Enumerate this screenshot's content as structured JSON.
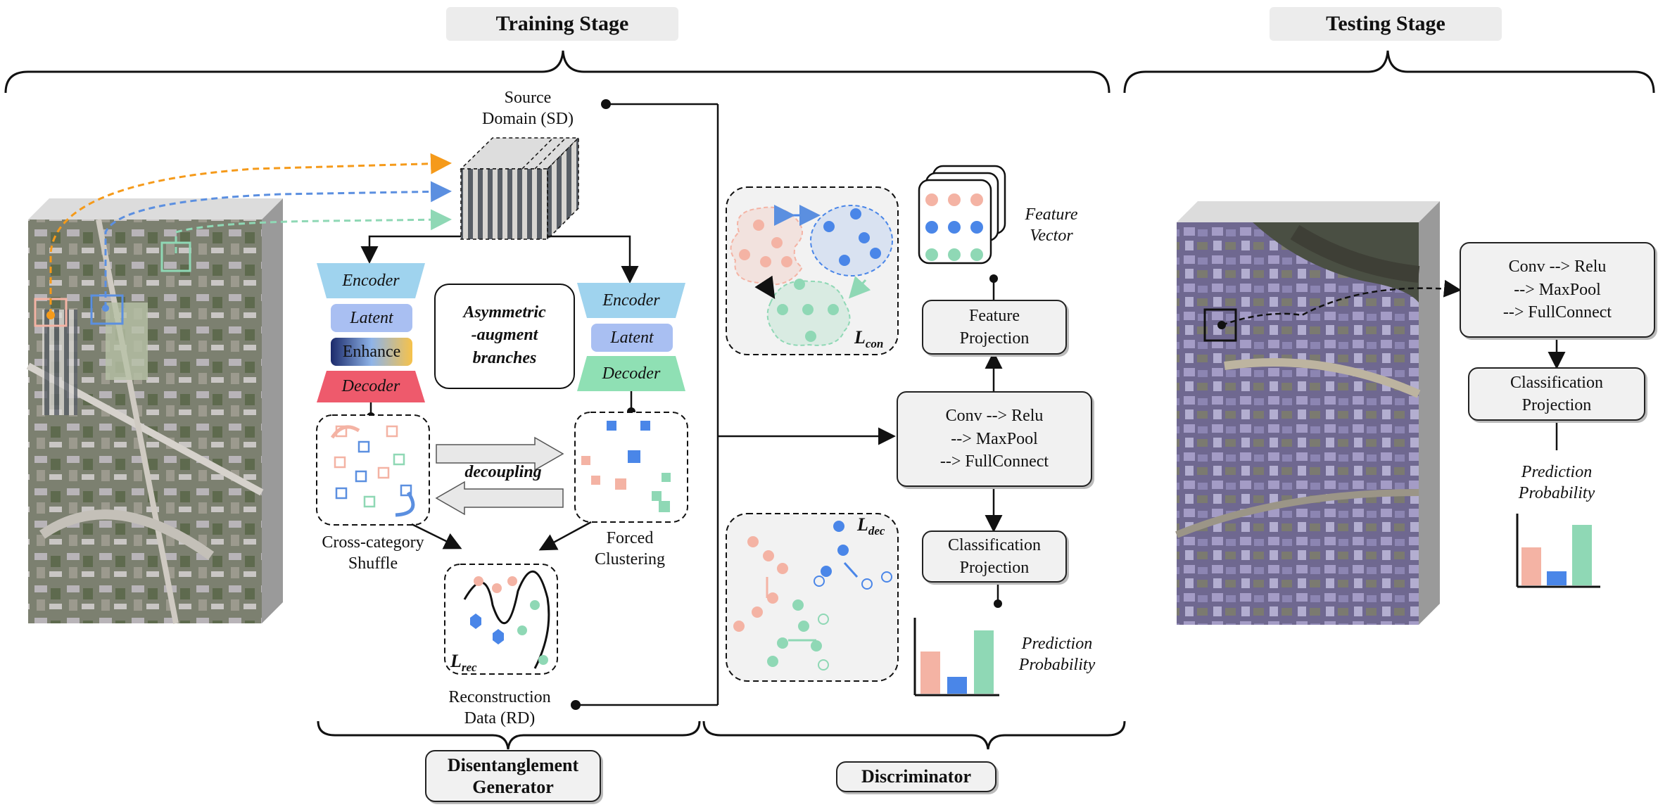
{
  "stages": {
    "training": "Training Stage",
    "testing": "Testing Stage"
  },
  "generator": {
    "source_domain": [
      "Source",
      "Domain (SD)"
    ],
    "left_branch": {
      "encoder": "Encoder",
      "latent": "Latent",
      "enhance": "Enhance",
      "decoder": "Decoder"
    },
    "right_branch": {
      "encoder": "Encoder",
      "latent": "Latent",
      "decoder": "Decoder"
    },
    "asymmetric": [
      "Asymmetric",
      "-augment",
      "branches"
    ],
    "decoupling": "decoupling",
    "shuffle": [
      "Cross-category",
      "Shuffle"
    ],
    "clustering": [
      "Forced",
      "Clustering"
    ],
    "reconstruction": [
      "Reconstruction",
      "Data (RD)"
    ],
    "loss_rec": {
      "base": "L",
      "sub": "rec"
    },
    "footer": [
      "Disentanglement",
      "Generator"
    ]
  },
  "discriminator": {
    "conv": [
      "Conv --> Relu",
      "--> MaxPool",
      "--> FullConnect"
    ],
    "feature_projection": [
      "Feature",
      "Projection"
    ],
    "classification_projection": [
      "Classification",
      "Projection"
    ],
    "feature_vector": [
      "Feature",
      "Vector"
    ],
    "prediction": [
      "Prediction",
      "Probability"
    ],
    "loss_con": {
      "base": "L",
      "sub": "con"
    },
    "loss_dec": {
      "base": "L",
      "sub": "dec"
    },
    "footer": "Discriminator"
  },
  "testing": {
    "conv": [
      "Conv --> Relu",
      "--> MaxPool",
      "--> FullConnect"
    ],
    "classification_projection": [
      "Classification",
      "Projection"
    ],
    "prediction": [
      "Prediction",
      "Probability"
    ]
  },
  "colors": {
    "salmon": "#f4b3a4",
    "blue": "#4a86e8",
    "green": "#8fd8b5",
    "orange_arrow": "#f59a1a",
    "blue_arrow": "#5b8fe0",
    "green_arrow": "#8fd8b5",
    "encoder": "#9fd3ee",
    "latent": "#a9bff2",
    "decoder_left": "#ee5a6c",
    "decoder_right": "#8fe0b4",
    "box_fill": "#f1f1f1"
  },
  "icons": [
    "satellite-image",
    "hyperspectral-cube",
    "rounded-square-node",
    "circle-node"
  ]
}
